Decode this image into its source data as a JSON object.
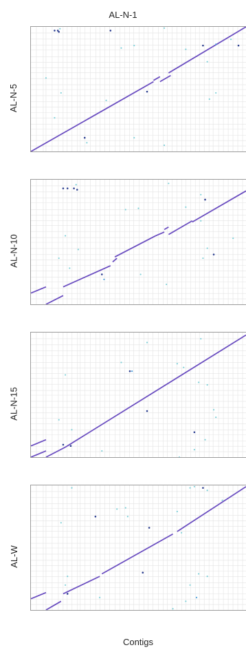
{
  "colors": {
    "line": "#6a4dc0",
    "dot_light": "#7ed0d8",
    "dot_mid": "#4aa0dc",
    "dot_dark": "#2a3d8f",
    "grid": "#e3e3e3",
    "frame": "#9a9a9a"
  },
  "top_label": "AL-N-1",
  "x_label": "Contigs",
  "chart_data": [
    {
      "type": "scatter",
      "title": "",
      "xlabel": "AL-N-1",
      "ylabel": "AL-N-5",
      "xlim": [
        0,
        1
      ],
      "ylim": [
        0,
        1
      ],
      "grid": true,
      "segments": [
        {
          "x0": 0.0,
          "y0": 0.0,
          "x1": 0.57,
          "y1": 0.56
        },
        {
          "x0": 0.57,
          "y0": 0.57,
          "x1": 0.6,
          "y1": 0.6
        },
        {
          "x0": 0.6,
          "y0": 0.56,
          "x1": 0.65,
          "y1": 0.61
        },
        {
          "x0": 0.64,
          "y0": 0.63,
          "x1": 1.0,
          "y1": 1.0
        }
      ],
      "points": [
        {
          "x": 0.11,
          "y": 0.97,
          "c": "dark"
        },
        {
          "x": 0.125,
          "y": 0.97,
          "c": "dark"
        },
        {
          "x": 0.13,
          "y": 0.96,
          "c": "dark"
        },
        {
          "x": 0.135,
          "y": 0.985,
          "c": "light"
        },
        {
          "x": 0.37,
          "y": 0.97,
          "c": "dark"
        },
        {
          "x": 0.62,
          "y": 0.99,
          "c": "light"
        },
        {
          "x": 0.42,
          "y": 0.83,
          "c": "light"
        },
        {
          "x": 0.48,
          "y": 0.85,
          "c": "light"
        },
        {
          "x": 0.72,
          "y": 0.82,
          "c": "light"
        },
        {
          "x": 0.8,
          "y": 0.85,
          "c": "dark"
        },
        {
          "x": 0.86,
          "y": 0.86,
          "c": "mid"
        },
        {
          "x": 0.93,
          "y": 0.9,
          "c": "light"
        },
        {
          "x": 0.965,
          "y": 0.85,
          "c": "dark"
        },
        {
          "x": 0.82,
          "y": 0.72,
          "c": "light"
        },
        {
          "x": 0.07,
          "y": 0.59,
          "c": "light"
        },
        {
          "x": 0.14,
          "y": 0.47,
          "c": "light"
        },
        {
          "x": 0.35,
          "y": 0.41,
          "c": "light"
        },
        {
          "x": 0.54,
          "y": 0.48,
          "c": "dark"
        },
        {
          "x": 0.83,
          "y": 0.42,
          "c": "light"
        },
        {
          "x": 0.86,
          "y": 0.47,
          "c": "light"
        },
        {
          "x": 0.11,
          "y": 0.27,
          "c": "light"
        },
        {
          "x": 0.25,
          "y": 0.11,
          "c": "dark"
        },
        {
          "x": 0.26,
          "y": 0.07,
          "c": "light"
        },
        {
          "x": 0.48,
          "y": 0.11,
          "c": "light"
        },
        {
          "x": 0.62,
          "y": 0.05,
          "c": "light"
        }
      ]
    },
    {
      "type": "scatter",
      "title": "",
      "xlabel": "AL-N-1",
      "ylabel": "AL-N-10",
      "xlim": [
        0,
        1
      ],
      "ylim": [
        0,
        1
      ],
      "grid": true,
      "segments": [
        {
          "x0": 0.0,
          "y0": 0.09,
          "x1": 0.07,
          "y1": 0.14
        },
        {
          "x0": 0.07,
          "y0": 0.0,
          "x1": 0.15,
          "y1": 0.07
        },
        {
          "x0": 0.15,
          "y0": 0.14,
          "x1": 0.37,
          "y1": 0.31
        },
        {
          "x0": 0.38,
          "y0": 0.34,
          "x1": 0.4,
          "y1": 0.37
        },
        {
          "x0": 0.39,
          "y0": 0.38,
          "x1": 0.58,
          "y1": 0.55
        },
        {
          "x0": 0.58,
          "y0": 0.55,
          "x1": 0.62,
          "y1": 0.58
        },
        {
          "x0": 0.62,
          "y0": 0.6,
          "x1": 0.64,
          "y1": 0.62
        },
        {
          "x0": 0.64,
          "y0": 0.56,
          "x1": 0.75,
          "y1": 0.67
        },
        {
          "x0": 0.75,
          "y0": 0.66,
          "x1": 1.0,
          "y1": 0.91
        }
      ],
      "points": [
        {
          "x": 0.15,
          "y": 0.93,
          "c": "dark"
        },
        {
          "x": 0.17,
          "y": 0.93,
          "c": "dark"
        },
        {
          "x": 0.2,
          "y": 0.93,
          "c": "dark"
        },
        {
          "x": 0.215,
          "y": 0.92,
          "c": "dark"
        },
        {
          "x": 0.21,
          "y": 0.96,
          "c": "light"
        },
        {
          "x": 0.64,
          "y": 0.97,
          "c": "light"
        },
        {
          "x": 0.44,
          "y": 0.76,
          "c": "light"
        },
        {
          "x": 0.5,
          "y": 0.77,
          "c": "light"
        },
        {
          "x": 0.72,
          "y": 0.78,
          "c": "light"
        },
        {
          "x": 0.79,
          "y": 0.88,
          "c": "light"
        },
        {
          "x": 0.81,
          "y": 0.84,
          "c": "dark"
        },
        {
          "x": 0.79,
          "y": 0.67,
          "c": "light"
        },
        {
          "x": 0.94,
          "y": 0.53,
          "c": "light"
        },
        {
          "x": 0.16,
          "y": 0.55,
          "c": "light"
        },
        {
          "x": 0.22,
          "y": 0.44,
          "c": "light"
        },
        {
          "x": 0.13,
          "y": 0.37,
          "c": "light"
        },
        {
          "x": 0.18,
          "y": 0.29,
          "c": "light"
        },
        {
          "x": 0.33,
          "y": 0.24,
          "c": "dark"
        },
        {
          "x": 0.34,
          "y": 0.2,
          "c": "mid"
        },
        {
          "x": 0.51,
          "y": 0.24,
          "c": "light"
        },
        {
          "x": 0.63,
          "y": 0.16,
          "c": "light"
        },
        {
          "x": 0.82,
          "y": 0.45,
          "c": "light"
        },
        {
          "x": 0.85,
          "y": 0.4,
          "c": "dark"
        },
        {
          "x": 0.8,
          "y": 0.37,
          "c": "light"
        }
      ]
    },
    {
      "type": "scatter",
      "title": "",
      "xlabel": "AL-N-1",
      "ylabel": "AL-N-15",
      "xlim": [
        0,
        1
      ],
      "ylim": [
        0,
        1
      ],
      "grid": true,
      "segments": [
        {
          "x0": 0.0,
          "y0": 0.0,
          "x1": 0.07,
          "y1": 0.05
        },
        {
          "x0": 0.07,
          "y0": 0.0,
          "x1": 0.16,
          "y1": 0.08
        },
        {
          "x0": 0.0,
          "y0": 0.09,
          "x1": 0.07,
          "y1": 0.14
        },
        {
          "x0": 0.16,
          "y0": 0.08,
          "x1": 1.0,
          "y1": 0.98
        }
      ],
      "points": [
        {
          "x": 0.54,
          "y": 0.92,
          "c": "light"
        },
        {
          "x": 0.79,
          "y": 0.95,
          "c": "light"
        },
        {
          "x": 0.42,
          "y": 0.76,
          "c": "light"
        },
        {
          "x": 0.46,
          "y": 0.69,
          "c": "dark"
        },
        {
          "x": 0.47,
          "y": 0.69,
          "c": "mid"
        },
        {
          "x": 0.68,
          "y": 0.75,
          "c": "light"
        },
        {
          "x": 0.71,
          "y": 0.72,
          "c": "light"
        },
        {
          "x": 0.78,
          "y": 0.6,
          "c": "light"
        },
        {
          "x": 0.82,
          "y": 0.58,
          "c": "light"
        },
        {
          "x": 0.16,
          "y": 0.66,
          "c": "light"
        },
        {
          "x": 0.13,
          "y": 0.3,
          "c": "light"
        },
        {
          "x": 0.19,
          "y": 0.22,
          "c": "light"
        },
        {
          "x": 0.15,
          "y": 0.1,
          "c": "dark"
        },
        {
          "x": 0.185,
          "y": 0.09,
          "c": "dark"
        },
        {
          "x": 0.33,
          "y": 0.05,
          "c": "light"
        },
        {
          "x": 0.54,
          "y": 0.37,
          "c": "dark"
        },
        {
          "x": 0.85,
          "y": 0.38,
          "c": "light"
        },
        {
          "x": 0.86,
          "y": 0.32,
          "c": "light"
        },
        {
          "x": 0.76,
          "y": 0.2,
          "c": "dark"
        },
        {
          "x": 0.76,
          "y": 0.06,
          "c": "light"
        },
        {
          "x": 0.69,
          "y": 0.0,
          "c": "light"
        },
        {
          "x": 0.81,
          "y": 0.14,
          "c": "light"
        }
      ]
    },
    {
      "type": "scatter",
      "title": "",
      "xlabel": "AL-N-1",
      "ylabel": "AL-W",
      "xlim": [
        0,
        1
      ],
      "ylim": [
        0,
        1
      ],
      "grid": true,
      "segments": [
        {
          "x0": 0.0,
          "y0": 0.09,
          "x1": 0.07,
          "y1": 0.14
        },
        {
          "x0": 0.07,
          "y0": 0.0,
          "x1": 0.14,
          "y1": 0.07
        },
        {
          "x0": 0.15,
          "y0": 0.13,
          "x1": 0.32,
          "y1": 0.27
        },
        {
          "x0": 0.33,
          "y0": 0.29,
          "x1": 0.66,
          "y1": 0.61
        },
        {
          "x0": 0.68,
          "y0": 0.63,
          "x1": 1.0,
          "y1": 0.99
        }
      ],
      "points": [
        {
          "x": 0.19,
          "y": 0.98,
          "c": "light"
        },
        {
          "x": 0.74,
          "y": 0.98,
          "c": "light"
        },
        {
          "x": 0.76,
          "y": 0.99,
          "c": "light"
        },
        {
          "x": 0.8,
          "y": 0.98,
          "c": "dark"
        },
        {
          "x": 0.82,
          "y": 0.96,
          "c": "light"
        },
        {
          "x": 0.89,
          "y": 0.88,
          "c": "light"
        },
        {
          "x": 0.4,
          "y": 0.81,
          "c": "light"
        },
        {
          "x": 0.44,
          "y": 0.82,
          "c": "light"
        },
        {
          "x": 0.45,
          "y": 0.75,
          "c": "light"
        },
        {
          "x": 0.3,
          "y": 0.75,
          "c": "dark"
        },
        {
          "x": 0.14,
          "y": 0.7,
          "c": "light"
        },
        {
          "x": 0.55,
          "y": 0.66,
          "c": "dark"
        },
        {
          "x": 0.68,
          "y": 0.79,
          "c": "light"
        },
        {
          "x": 0.7,
          "y": 0.62,
          "c": "light"
        },
        {
          "x": 0.52,
          "y": 0.3,
          "c": "dark"
        },
        {
          "x": 0.78,
          "y": 0.29,
          "c": "light"
        },
        {
          "x": 0.82,
          "y": 0.27,
          "c": "light"
        },
        {
          "x": 0.74,
          "y": 0.2,
          "c": "light"
        },
        {
          "x": 0.17,
          "y": 0.27,
          "c": "light"
        },
        {
          "x": 0.16,
          "y": 0.2,
          "c": "light"
        },
        {
          "x": 0.17,
          "y": 0.13,
          "c": "dark"
        },
        {
          "x": 0.32,
          "y": 0.1,
          "c": "light"
        },
        {
          "x": 0.77,
          "y": 0.1,
          "c": "mid"
        },
        {
          "x": 0.72,
          "y": 0.07,
          "c": "light"
        },
        {
          "x": 0.66,
          "y": 0.01,
          "c": "light"
        }
      ]
    }
  ]
}
